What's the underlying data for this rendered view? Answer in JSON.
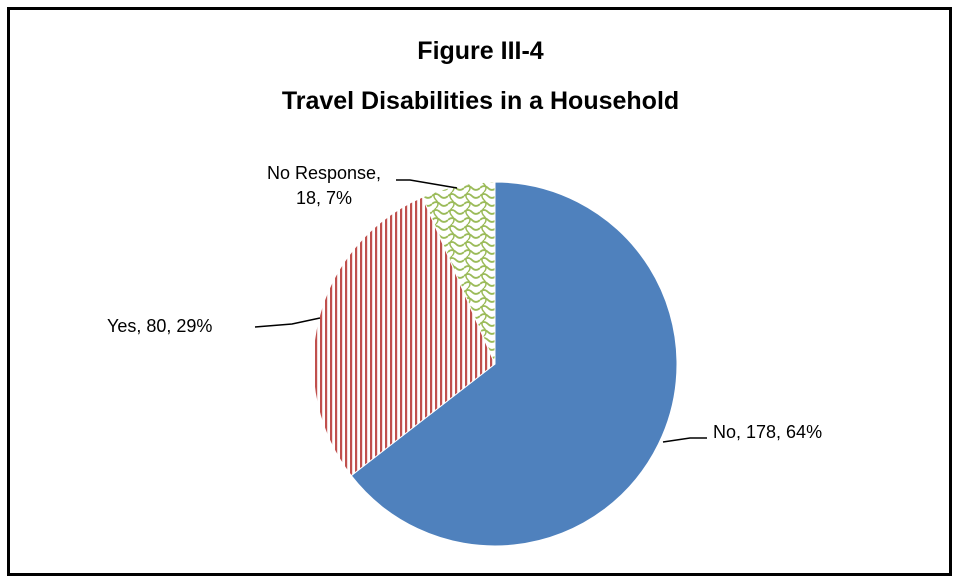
{
  "chart_data": {
    "type": "pie",
    "title_line1": "Figure III-4",
    "title_line2": "Travel Disabilities in a Household",
    "slices": [
      {
        "name": "No",
        "count": 178,
        "percent": "64%",
        "color": "#4f81bd",
        "pattern": "solid"
      },
      {
        "name": "Yes",
        "count": 80,
        "percent": "29%",
        "color": "#c0504d",
        "pattern": "vertical-stripes"
      },
      {
        "name": "No Response",
        "count": 18,
        "percent": "7%",
        "color": "#9bbb59",
        "pattern": "wave"
      }
    ],
    "labels": {
      "no": "No, 178, 64%",
      "yes": "Yes, 80, 29%",
      "no_response_line1": "No Response,",
      "no_response_line2": "18, 7%"
    }
  }
}
